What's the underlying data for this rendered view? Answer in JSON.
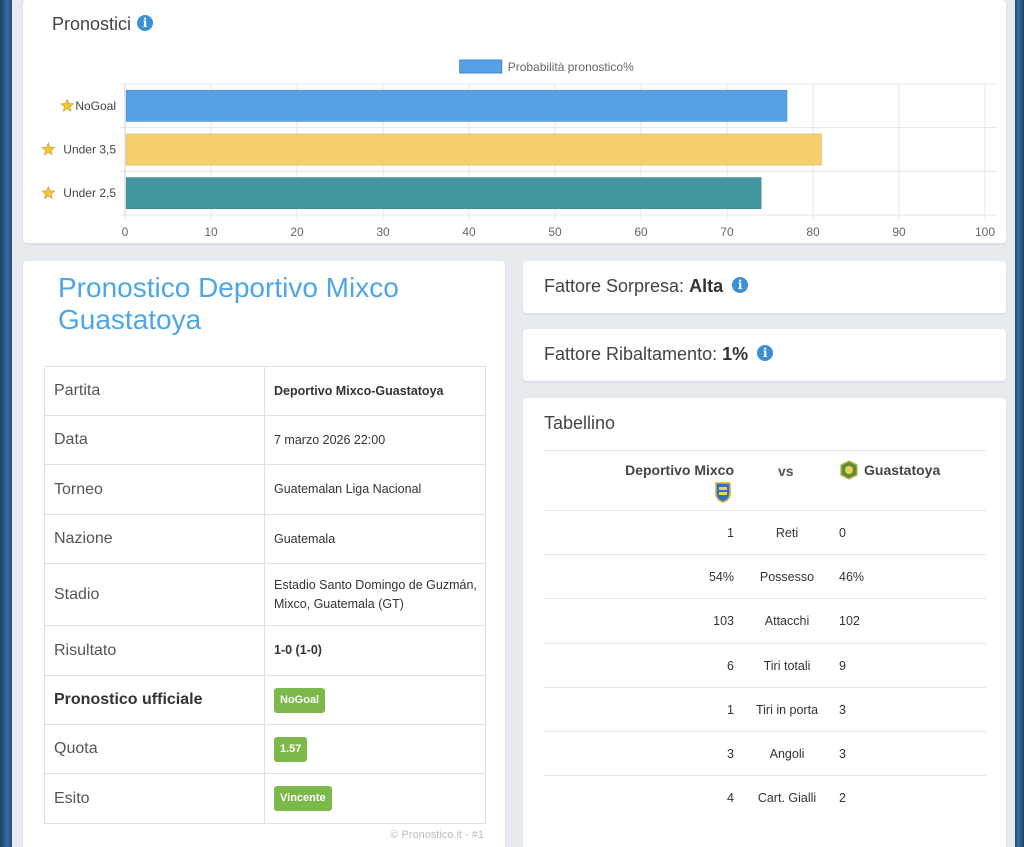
{
  "colors": {
    "accent": "#4da6e8",
    "badge_green": "#7cb84a",
    "info_blue": "#3b8fd9"
  },
  "prediction_chart": {
    "title": "Pronostici",
    "info_icon": "info-icon",
    "star_icon": "star-icon"
  },
  "chart_data": {
    "type": "bar",
    "orientation": "horizontal",
    "categories": [
      "NoGoal",
      "Under 3,5",
      "Under 2,5"
    ],
    "series": [
      {
        "name": "Probabilità pronostico%",
        "values": [
          77,
          81,
          74
        ]
      }
    ],
    "bar_colors": [
      "#56a0e6",
      "#f4cf6b",
      "#44969e"
    ],
    "legend_color": "#56a0e6",
    "xlim": [
      0,
      100
    ],
    "xticks": [
      0,
      10,
      20,
      30,
      40,
      50,
      60,
      70,
      80,
      90,
      100
    ],
    "grid": true,
    "legend": "top-center"
  },
  "match": {
    "title": "Pronostico Deportivo Mixco Guastatoya",
    "rows": [
      {
        "label": "Partita",
        "value": "Deportivo Mixco-Guastatoya"
      },
      {
        "label": "Data",
        "value": "7 marzo 2026 22:00"
      },
      {
        "label": "Torneo",
        "value": "Guatemalan Liga Nacional"
      },
      {
        "label": "Nazione",
        "value": "Guatemala"
      },
      {
        "label": "Stadio",
        "value": "Estadio Santo Domingo de Guzmán, Mixco, Guatemala (GT)"
      },
      {
        "label": "Risultato",
        "value": "1-0 (1-0)"
      },
      {
        "label": "Pronostico ufficiale",
        "value": "NoGoal"
      },
      {
        "label": "Quota",
        "value": "1.57"
      },
      {
        "label": "Esito",
        "value": "Vincente"
      }
    ],
    "copyright": "© Pronostico.it - #1"
  },
  "surprise": {
    "label": "Fattore Sorpresa:",
    "value": "Alta"
  },
  "reversal": {
    "label": "Fattore Ribaltamento:",
    "value": "1%"
  },
  "tabellino": {
    "title": "Tabellino",
    "home_team": "Deportivo Mixco",
    "vs": "vs",
    "away_team": "Guastatoya",
    "home_crest_icon": "team-crest-icon",
    "away_crest_icon": "team-crest-icon",
    "stats": [
      {
        "home": "1",
        "name": "Reti",
        "away": "0"
      },
      {
        "home": "54%",
        "name": "Possesso",
        "away": "46%"
      },
      {
        "home": "103",
        "name": "Attacchi",
        "away": "102"
      },
      {
        "home": "6",
        "name": "Tiri totali",
        "away": "9"
      },
      {
        "home": "1",
        "name": "Tiri in porta",
        "away": "3"
      },
      {
        "home": "3",
        "name": "Angoli",
        "away": "3"
      },
      {
        "home": "4",
        "name": "Cart. Gialli",
        "away": "2"
      }
    ]
  }
}
